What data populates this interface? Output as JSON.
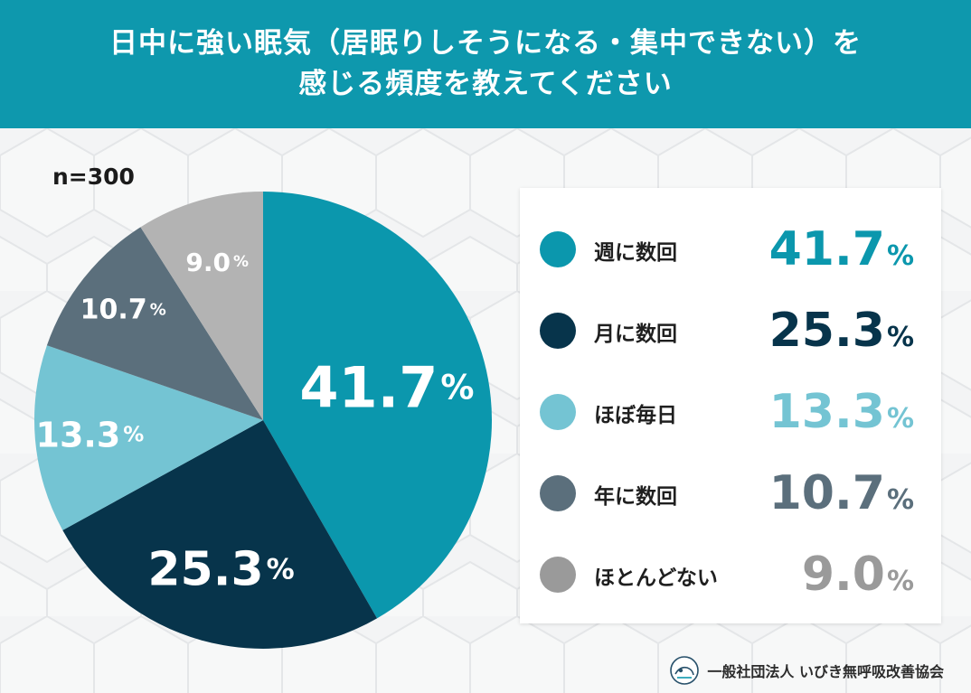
{
  "header": {
    "title_line1": "日中に強い眠気（居眠りしそうになる・集中できない）を",
    "title_line2": "感じる頻度を教えてください",
    "background_color": "#0e98ad"
  },
  "sample_size": "n=300",
  "chart_data": {
    "type": "pie",
    "categories": [
      "週に数回",
      "月に数回",
      "ほぼ毎日",
      "年に数回",
      "ほとんどない"
    ],
    "values": [
      41.7,
      25.3,
      13.3,
      10.7,
      9.0
    ],
    "labels": [
      "41.7",
      "25.3",
      "13.3",
      "10.7",
      "9.0"
    ],
    "unit": "%",
    "colors": [
      "#0b97ad",
      "#07344b",
      "#74c4d3",
      "#5b6f7c",
      "#b3b3b3"
    ],
    "start": "12 o'clock, clockwise"
  },
  "legend": {
    "items": [
      {
        "label": "週に数回",
        "value": "41.7",
        "unit": "%",
        "color": "#0b97ad"
      },
      {
        "label": "月に数回",
        "value": "25.3",
        "unit": "%",
        "color": "#07344b"
      },
      {
        "label": "ほぼ毎日",
        "value": "13.3",
        "unit": "%",
        "color": "#74c4d3"
      },
      {
        "label": "年に数回",
        "value": "10.7",
        "unit": "%",
        "color": "#5b6f7c"
      },
      {
        "label": "ほとんどない",
        "value": "9.0",
        "unit": "%",
        "color": "#9a9a9a"
      }
    ]
  },
  "footer": {
    "organization": "一般社団法人 いびき無呼吸改善協会",
    "logo_icon": "association-logo-icon"
  }
}
